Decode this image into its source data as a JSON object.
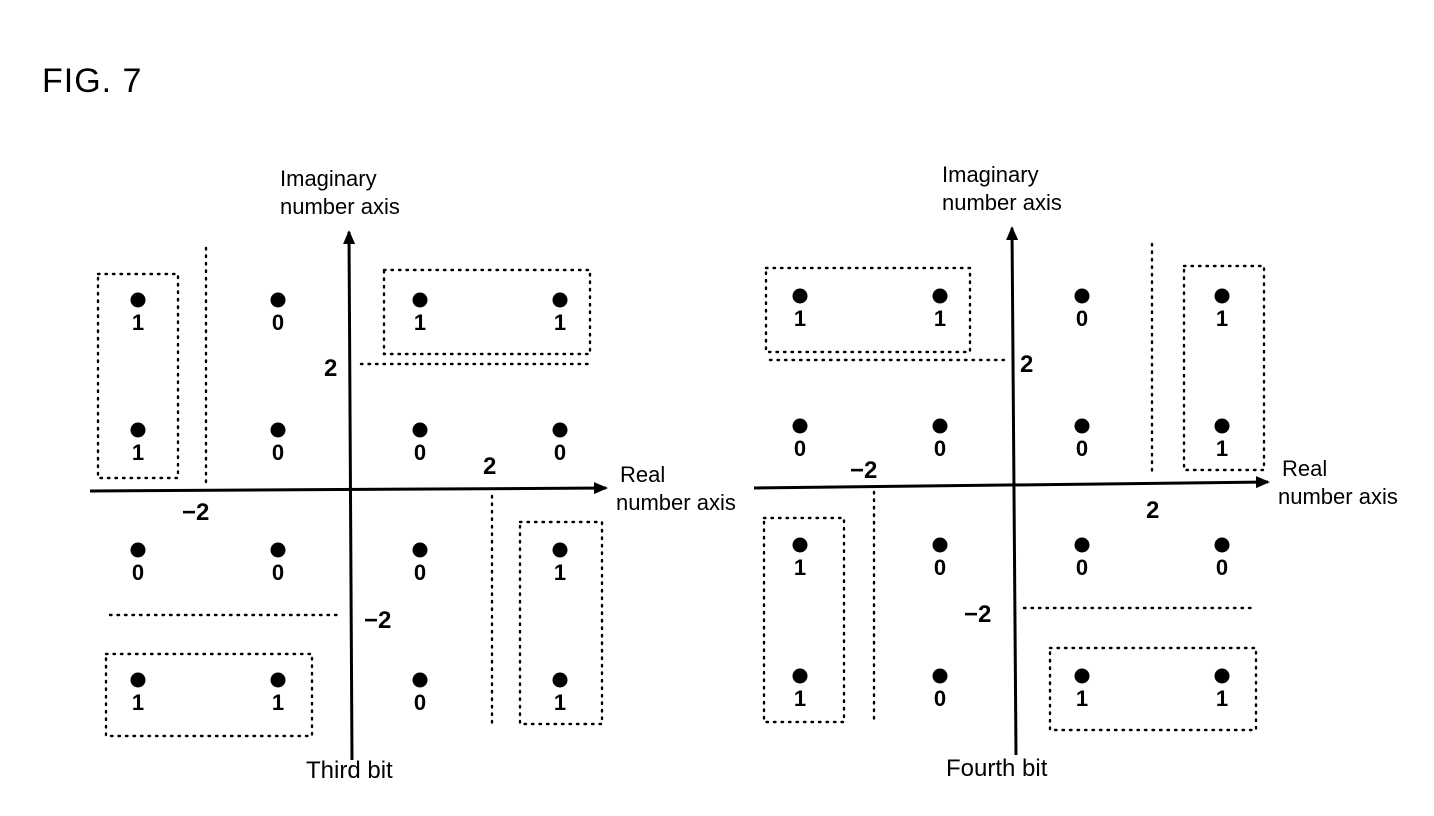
{
  "figure_title": "FIG. 7",
  "colors": {
    "ink": "#000000",
    "background": "#ffffff"
  },
  "panels": [
    {
      "name": "third-bit",
      "caption": "Third bit",
      "imag_axis_title": [
        "Imaginary",
        "number axis"
      ],
      "real_axis_title": [
        "Real",
        "number axis"
      ],
      "tick_labels": {
        "imag_pos": "2",
        "imag_neg": "−2",
        "real_pos": "2",
        "real_neg": "−2"
      },
      "points": [
        {
          "re": -3,
          "im": 3,
          "bit": "1"
        },
        {
          "re": -1,
          "im": 3,
          "bit": "0"
        },
        {
          "re": 1,
          "im": 3,
          "bit": "1"
        },
        {
          "re": 3,
          "im": 3,
          "bit": "1"
        },
        {
          "re": -3,
          "im": 1,
          "bit": "1"
        },
        {
          "re": -1,
          "im": 1,
          "bit": "0"
        },
        {
          "re": 1,
          "im": 1,
          "bit": "0"
        },
        {
          "re": 3,
          "im": 1,
          "bit": "0"
        },
        {
          "re": -3,
          "im": -1,
          "bit": "0"
        },
        {
          "re": -1,
          "im": -1,
          "bit": "0"
        },
        {
          "re": 1,
          "im": -1,
          "bit": "0"
        },
        {
          "re": 3,
          "im": -1,
          "bit": "1"
        },
        {
          "re": -3,
          "im": -3,
          "bit": "1"
        },
        {
          "re": -1,
          "im": -3,
          "bit": "1"
        },
        {
          "re": 1,
          "im": -3,
          "bit": "0"
        },
        {
          "re": 3,
          "im": -3,
          "bit": "1"
        }
      ]
    },
    {
      "name": "fourth-bit",
      "caption": "Fourth bit",
      "imag_axis_title": [
        "Imaginary",
        "number axis"
      ],
      "real_axis_title": [
        "Real",
        "number axis"
      ],
      "tick_labels": {
        "imag_pos": "2",
        "imag_neg": "−2",
        "real_pos": "2",
        "real_neg": "−2"
      },
      "points": [
        {
          "re": -3,
          "im": 3,
          "bit": "1"
        },
        {
          "re": -1,
          "im": 3,
          "bit": "1"
        },
        {
          "re": 1,
          "im": 3,
          "bit": "0"
        },
        {
          "re": 3,
          "im": 3,
          "bit": "1"
        },
        {
          "re": -3,
          "im": 1,
          "bit": "0"
        },
        {
          "re": -1,
          "im": 1,
          "bit": "0"
        },
        {
          "re": 1,
          "im": 1,
          "bit": "0"
        },
        {
          "re": 3,
          "im": 1,
          "bit": "1"
        },
        {
          "re": -3,
          "im": -1,
          "bit": "1"
        },
        {
          "re": -1,
          "im": -1,
          "bit": "0"
        },
        {
          "re": 1,
          "im": -1,
          "bit": "0"
        },
        {
          "re": 3,
          "im": -1,
          "bit": "0"
        },
        {
          "re": -3,
          "im": -3,
          "bit": "1"
        },
        {
          "re": -1,
          "im": -3,
          "bit": "0"
        },
        {
          "re": 1,
          "im": -3,
          "bit": "1"
        },
        {
          "re": 3,
          "im": -3,
          "bit": "1"
        }
      ]
    }
  ]
}
